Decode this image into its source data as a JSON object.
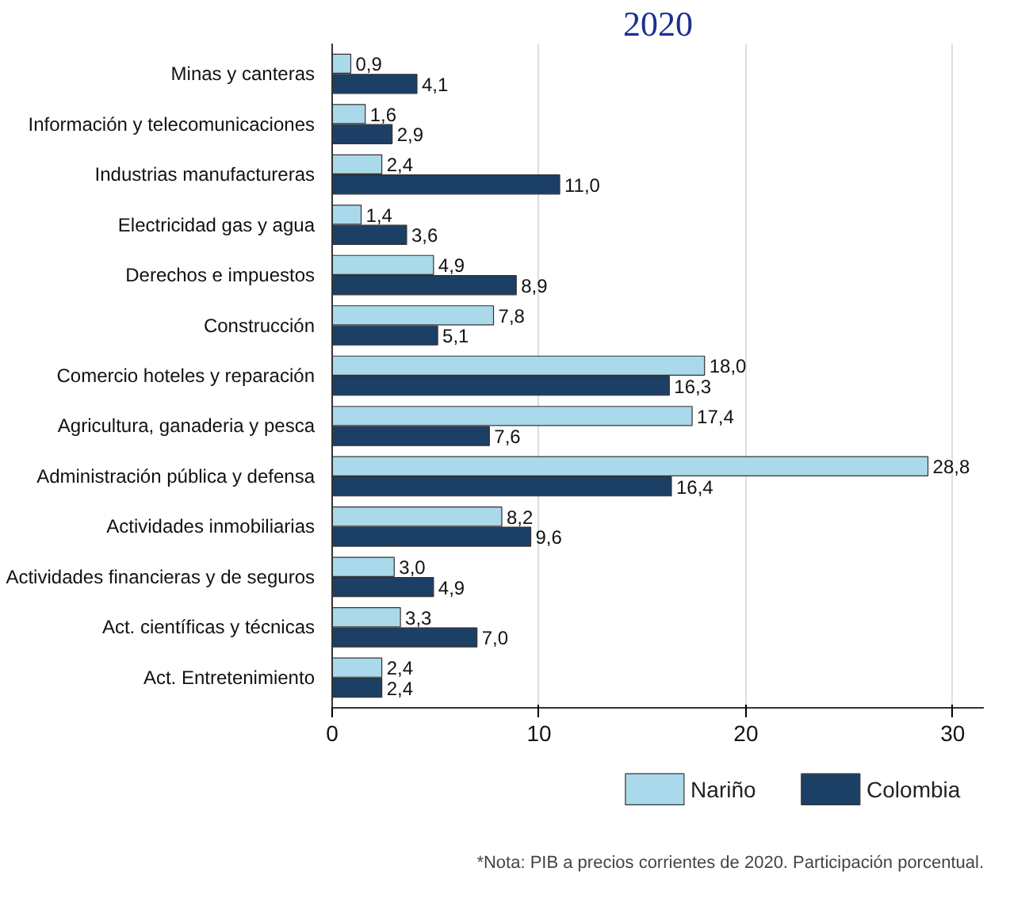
{
  "chart_data": {
    "type": "bar",
    "orientation": "horizontal",
    "title": "2020",
    "categories": [
      "Minas y canteras",
      "Información y telecomunicaciones",
      "Industrias manufactureras",
      "Electricidad gas y agua",
      "Derechos e impuestos",
      "Construcción",
      "Comercio hoteles y reparación",
      "Agricultura, ganaderia y pesca",
      "Administración pública y defensa",
      "Actividades inmobiliarias",
      "Actividades financieras y de seguros",
      "Act. científicas y técnicas",
      "Act. Entretenimiento"
    ],
    "series": [
      {
        "name": "Nariño",
        "color": "#a9d9ea",
        "values": [
          0.9,
          1.6,
          2.4,
          1.4,
          4.9,
          7.8,
          18.0,
          17.4,
          28.8,
          8.2,
          3.0,
          3.3,
          2.4
        ],
        "value_labels": [
          "0,9",
          "1,6",
          "2,4",
          "1,4",
          "4,9",
          "7,8",
          "18,0",
          "17,4",
          "28,8",
          "8,2",
          "3,0",
          "3,3",
          "2,4"
        ]
      },
      {
        "name": "Colombia",
        "color": "#1c3f66",
        "values": [
          4.1,
          2.9,
          11.0,
          3.6,
          8.9,
          5.1,
          16.3,
          7.6,
          16.4,
          9.6,
          4.9,
          7.0,
          2.4
        ],
        "value_labels": [
          "4,1",
          "2,9",
          "11,0",
          "3,6",
          "8,9",
          "5,1",
          "16,3",
          "7,6",
          "16,4",
          "9,6",
          "4,9",
          "7,0",
          "2,4"
        ]
      }
    ],
    "xlim": [
      0,
      31.5
    ],
    "xticks": [
      0,
      10,
      20,
      30
    ],
    "grid": "x",
    "legend": "bottom",
    "annotations": [
      "*Nota: PIB a precios corrientes de 2020. Participación porcentual."
    ]
  }
}
